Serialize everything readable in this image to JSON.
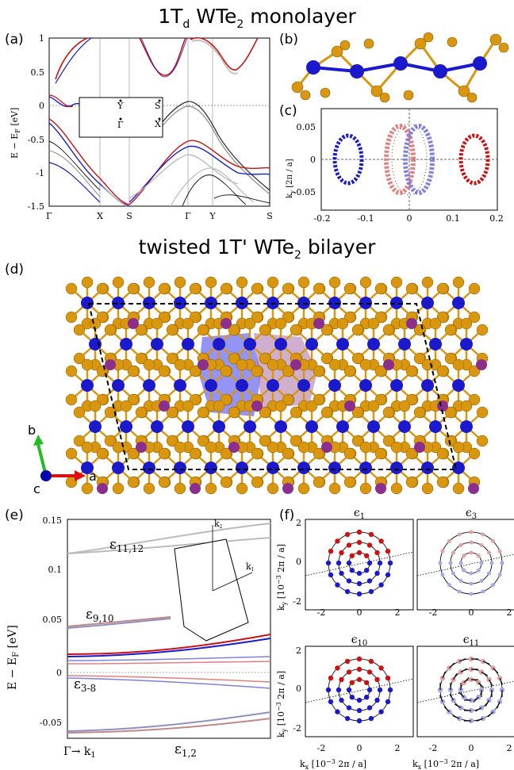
{
  "titles": {
    "top_main": "1T",
    "top_sub": "d",
    "top_rest": " WTe",
    "top_sub2": "2",
    "top_end": " monolayer",
    "mid_main": "twisted 1T' WTe",
    "mid_sub": "2",
    "mid_end": " bilayer"
  },
  "panel_labels": {
    "a": "(a)",
    "b": "(b)",
    "c": "(c)",
    "d": "(d)",
    "e": "(e)",
    "f": "(f)"
  },
  "panel_a": {
    "ylabel_main": "E − E",
    "ylabel_sub": "F",
    "ylabel_unit": " [eV]",
    "yticks": [
      "1",
      "0.5",
      "0",
      "-0.5",
      "-1",
      "-1.5"
    ],
    "xticks": [
      "Γ",
      "X",
      "S",
      "Γ",
      "Y",
      "S"
    ],
    "inset_labels": [
      "Y",
      "S",
      "Γ",
      "X"
    ]
  },
  "panel_c": {
    "ylabel": "k",
    "ylabel_sub": "y",
    "ylabel_unit": " [2π / a]",
    "yticks": [
      "0.05",
      "0",
      "-0.05"
    ],
    "xticks": [
      "-0.2",
      "-0.1",
      "0",
      "0.1",
      "0.2"
    ]
  },
  "panel_d": {
    "axes": [
      "b",
      "c",
      "a"
    ]
  },
  "panel_e": {
    "ylabel_main": "E − E",
    "ylabel_sub": "F",
    "ylabel_unit": " [eV]",
    "yticks": [
      "0.15",
      "0.1",
      "0.05",
      "0",
      "-0.05"
    ],
    "xlabel": "Γ→ k",
    "xlabel_sub": "1",
    "band_labels": [
      {
        "main": "ε",
        "sub": "11,12"
      },
      {
        "main": "ε",
        "sub": "9,10"
      },
      {
        "main": "ε",
        "sub": "3-8"
      },
      {
        "main": "ε",
        "sub": "1,2"
      }
    ],
    "inset_labels": [
      "k",
      "2",
      "k",
      "1"
    ]
  },
  "panel_f": {
    "titles": [
      {
        "main": "ϵ",
        "sub": "1"
      },
      {
        "main": "ϵ",
        "sub": "3"
      },
      {
        "main": "ϵ",
        "sub": "10"
      },
      {
        "main": "ϵ",
        "sub": "11"
      }
    ],
    "ticks": [
      "2",
      "0",
      "-2"
    ],
    "xticks": [
      "-2",
      "0",
      "2"
    ],
    "ylabel": "k",
    "ylabel_sub": "y",
    "ylabel_unit": " [10",
    "ylabel_exp": "−3",
    "ylabel_end": " 2π / a]",
    "xlabel": "k",
    "xlabel_sub": "x",
    "xlabel_unit": " [10",
    "xlabel_exp": "−3",
    "xlabel_end": " 2π / a]"
  },
  "colors": {
    "red": "#cc1111",
    "blue": "#1a1acc",
    "gold": "#d9960f",
    "purple": "#8c2e8c",
    "gray": "#a0a0a0"
  }
}
